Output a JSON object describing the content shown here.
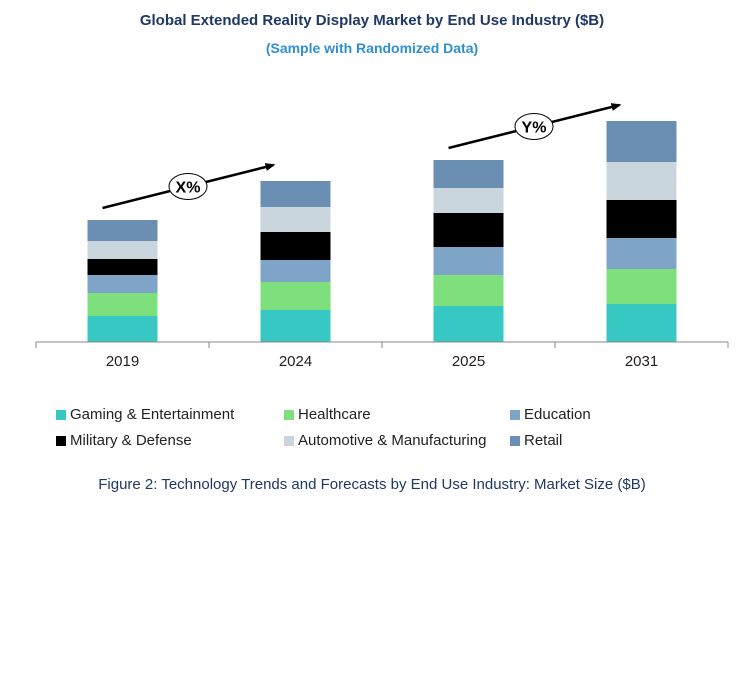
{
  "title": "Global Extended Reality Display Market by End Use Industry ($B)",
  "subtitle": "(Sample with Randomized Data)",
  "caption": "Figure 2: Technology  Trends  and Forecasts by End Use Industry:  Market Size ($B)",
  "annotations": [
    {
      "label": "X%",
      "from": "2019",
      "to": "2024"
    },
    {
      "label": "Y%",
      "from": "2025",
      "to": "2031"
    }
  ],
  "chart_data": {
    "type": "bar",
    "stacked": true,
    "categories": [
      "2019",
      "2024",
      "2025",
      "2031"
    ],
    "series": [
      {
        "name": "Gaming & Entertainment",
        "color": "#37c8c4",
        "values": [
          2.6,
          3.2,
          3.6,
          3.8
        ]
      },
      {
        "name": "Healthcare",
        "color": "#7de07d",
        "values": [
          2.3,
          2.8,
          3.1,
          3.5
        ]
      },
      {
        "name": "Education",
        "color": "#7ea5c8",
        "values": [
          1.8,
          2.2,
          2.8,
          3.1
        ]
      },
      {
        "name": "Military & Defense",
        "color": "#000000",
        "values": [
          1.6,
          2.8,
          3.4,
          3.8
        ]
      },
      {
        "name": "Automotive & Manufacturing",
        "color": "#cad6de",
        "values": [
          1.8,
          2.5,
          2.5,
          3.8
        ]
      },
      {
        "name": "Retail",
        "color": "#6b8fb2",
        "values": [
          2.1,
          2.6,
          2.8,
          4.1
        ]
      }
    ],
    "ylim": [
      0,
      23
    ],
    "grid": false,
    "legend_position": "bottom"
  }
}
